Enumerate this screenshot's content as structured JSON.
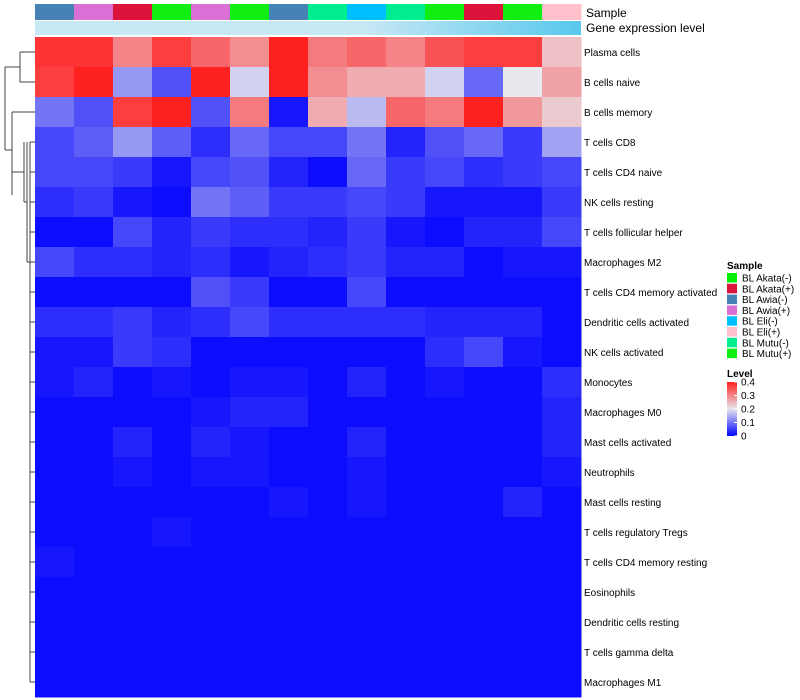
{
  "chart_data": {
    "type": "heatmap",
    "title": "",
    "annotation_tracks": [
      "Sample",
      "Gene expression level"
    ],
    "columns": [
      "BL Awia(-)",
      "BL Awia(+)",
      "BL Akata(+)",
      "BL Mutu(+)",
      "BL Awia(+)",
      "BL Mutu(+)",
      "BL Awia(-)",
      "BL Mutu(-)",
      "BL Eli(-)",
      "BL Mutu(-)",
      "BL Mutu(+)",
      "BL Akata(+)",
      "BL Mutu(+)",
      "BL Eli(+)"
    ],
    "rows": [
      "Plasma cells",
      "B cells naive",
      "B cells memory",
      "T cells CD8",
      "T cells CD4 naive",
      "NK cells resting",
      "T cells follicular helper",
      "Macrophages M2",
      "T cells CD4 memory activated",
      "Dendritic cells activated",
      "NK cells activated",
      "Monocytes",
      "Macrophages M0",
      "Mast cells activated",
      "Neutrophils",
      "Mast cells resting",
      "T cells regulatory  Tregs",
      "T cells CD4 memory resting",
      "Eosinophils",
      "Dendritic cells resting",
      "T cells gamma delta",
      "Macrophages M1"
    ],
    "values": [
      [
        0.38,
        0.38,
        0.3,
        0.37,
        0.33,
        0.29,
        0.4,
        0.31,
        0.33,
        0.3,
        0.35,
        0.37,
        0.37,
        0.24
      ],
      [
        0.37,
        0.41,
        0.13,
        0.07,
        0.42,
        0.18,
        0.42,
        0.29,
        0.26,
        0.26,
        0.18,
        0.09,
        0.2,
        0.27
      ],
      [
        0.1,
        0.07,
        0.37,
        0.41,
        0.07,
        0.31,
        0.02,
        0.26,
        0.16,
        0.33,
        0.31,
        0.41,
        0.28,
        0.23
      ],
      [
        0.06,
        0.08,
        0.13,
        0.08,
        0.04,
        0.09,
        0.06,
        0.06,
        0.1,
        0.03,
        0.07,
        0.09,
        0.05,
        0.14
      ],
      [
        0.06,
        0.06,
        0.05,
        0.02,
        0.06,
        0.07,
        0.03,
        0.01,
        0.09,
        0.05,
        0.06,
        0.04,
        0.05,
        0.06
      ],
      [
        0.04,
        0.05,
        0.02,
        0.01,
        0.1,
        0.08,
        0.05,
        0.05,
        0.06,
        0.05,
        0.02,
        0.02,
        0.02,
        0.05
      ],
      [
        0.01,
        0.01,
        0.06,
        0.03,
        0.05,
        0.04,
        0.04,
        0.03,
        0.05,
        0.02,
        0.01,
        0.03,
        0.03,
        0.06
      ],
      [
        0.06,
        0.04,
        0.04,
        0.03,
        0.04,
        0.02,
        0.03,
        0.04,
        0.05,
        0.03,
        0.03,
        0.01,
        0.02,
        0.02
      ],
      [
        0.01,
        0.01,
        0.01,
        0.01,
        0.07,
        0.05,
        0.01,
        0.01,
        0.06,
        0.01,
        0.01,
        0.01,
        0.01,
        0.01
      ],
      [
        0.04,
        0.04,
        0.05,
        0.03,
        0.04,
        0.06,
        0.04,
        0.04,
        0.04,
        0.04,
        0.03,
        0.03,
        0.03,
        0.01
      ],
      [
        0.02,
        0.02,
        0.05,
        0.04,
        0.01,
        0.01,
        0.01,
        0.01,
        0.01,
        0.01,
        0.04,
        0.06,
        0.02,
        0.01
      ],
      [
        0.02,
        0.03,
        0.01,
        0.02,
        0.01,
        0.02,
        0.02,
        0.01,
        0.03,
        0.01,
        0.02,
        0.01,
        0.01,
        0.04
      ],
      [
        0.01,
        0.01,
        0.01,
        0.01,
        0.02,
        0.03,
        0.03,
        0.01,
        0.01,
        0.01,
        0.01,
        0.01,
        0.01,
        0.03
      ],
      [
        0.01,
        0.01,
        0.03,
        0.01,
        0.03,
        0.02,
        0.01,
        0.01,
        0.03,
        0.01,
        0.01,
        0.01,
        0.01,
        0.03
      ],
      [
        0.01,
        0.01,
        0.02,
        0.01,
        0.02,
        0.02,
        0.01,
        0.01,
        0.02,
        0.01,
        0.01,
        0.01,
        0.01,
        0.02
      ],
      [
        0.01,
        0.01,
        0.01,
        0.01,
        0.01,
        0.01,
        0.02,
        0.01,
        0.02,
        0.01,
        0.01,
        0.01,
        0.03,
        0.01
      ],
      [
        0.01,
        0.01,
        0.01,
        0.02,
        0.01,
        0.01,
        0.01,
        0.01,
        0.01,
        0.01,
        0.01,
        0.01,
        0.01,
        0.01
      ],
      [
        0.02,
        0.01,
        0.01,
        0.01,
        0.01,
        0.01,
        0.01,
        0.01,
        0.01,
        0.01,
        0.01,
        0.01,
        0.01,
        0.01
      ],
      [
        0.01,
        0.01,
        0.01,
        0.01,
        0.01,
        0.01,
        0.01,
        0.01,
        0.01,
        0.01,
        0.01,
        0.01,
        0.01,
        0.01
      ],
      [
        0.01,
        0.01,
        0.01,
        0.01,
        0.01,
        0.01,
        0.01,
        0.01,
        0.01,
        0.01,
        0.01,
        0.01,
        0.01,
        0.01
      ],
      [
        0.01,
        0.01,
        0.01,
        0.01,
        0.01,
        0.01,
        0.01,
        0.01,
        0.01,
        0.01,
        0.01,
        0.01,
        0.01,
        0.01
      ],
      [
        0.01,
        0.01,
        0.01,
        0.01,
        0.01,
        0.01,
        0.01,
        0.01,
        0.01,
        0.01,
        0.01,
        0.01,
        0.01,
        0.01
      ]
    ],
    "sample_legend": {
      "title": "Sample",
      "entries": [
        {
          "label": "BL Akata(-)",
          "color": "#00ee00"
        },
        {
          "label": "BL Akata(+)",
          "color": "#dc143c"
        },
        {
          "label": "BL Awia(-)",
          "color": "#4682b4"
        },
        {
          "label": "BL Awia(+)",
          "color": "#da70d6"
        },
        {
          "label": "BL Eli(-)",
          "color": "#00bfff"
        },
        {
          "label": "BL Eli(+)",
          "color": "#ffc0cb"
        },
        {
          "label": "BL Mutu(-)",
          "color": "#00ee90"
        },
        {
          "label": "BL Mutu(+)",
          "color": "#11ee11"
        }
      ]
    },
    "expression_track_color": "#c8e8f4",
    "expression_track_color_end": "#58c8ec",
    "color_scale": {
      "title": "Level",
      "min": 0,
      "max": 0.4,
      "stops": [
        {
          "value": 0,
          "color": "#0000ff"
        },
        {
          "value": 0.2,
          "color": "#e8e8ee"
        },
        {
          "value": 0.4,
          "color": "#ff2020"
        }
      ],
      "ticks": [
        {
          "value": 0.4,
          "label": "0.4"
        },
        {
          "value": 0.3,
          "label": "0.3"
        },
        {
          "value": 0.2,
          "label": "0.2"
        },
        {
          "value": 0.1,
          "label": "0.1"
        },
        {
          "value": 0,
          "label": "0"
        }
      ]
    }
  }
}
